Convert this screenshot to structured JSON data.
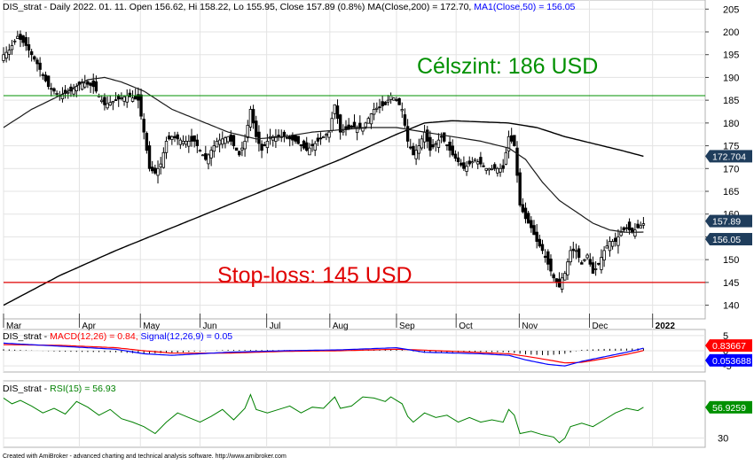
{
  "footer": "Created with AmiBroker - advanced charting and technical analysis software. http://www.amibroker.com",
  "colors": {
    "background": "#ffffff",
    "grid": "#e3e3e3",
    "candle": "#000000",
    "ma200": "#000000",
    "ma50": "#1a1a1a",
    "target_line": "#009000",
    "stop_line": "#e00000",
    "macd": "#0000ff",
    "signal": "#ff0000",
    "rsi": "#008000",
    "label_blue": "#0000ff",
    "label_red": "#ff0000",
    "tag_dark": "#1f3d5c",
    "tag_red": "#ff0000",
    "tag_blue": "#0000ff",
    "tag_green": "#009000"
  },
  "chart_data": [
    {
      "type": "candlestick",
      "panel": "price",
      "header": {
        "title": "DIS_strat - Daily 2022. 01. 11. Open 156.62, Hi 158.22, Lo 155.95, Close 157.89 (0.8%)",
        "ma200_label": "MA(Close,200) = 172.70",
        "ma50_label": "MA1(Close,50) = 156.05"
      },
      "ylim": [
        137,
        207
      ],
      "yticks": [
        140,
        145,
        150,
        155,
        160,
        165,
        170,
        175,
        180,
        185,
        190,
        195,
        200,
        205
      ],
      "months": [
        "Mar",
        "Apr",
        "May",
        "Jun",
        "Jul",
        "Aug",
        "Sep",
        "Oct",
        "Nov",
        "Dec",
        "2022"
      ],
      "close_path": [
        [
          0,
          195
        ],
        [
          2,
          196
        ],
        [
          5,
          199
        ],
        [
          8,
          197
        ],
        [
          12,
          193
        ],
        [
          16,
          188
        ],
        [
          20,
          186
        ],
        [
          24,
          187
        ],
        [
          28,
          189
        ],
        [
          32,
          188
        ],
        [
          36,
          184
        ],
        [
          40,
          185
        ],
        [
          44,
          186
        ],
        [
          48,
          185
        ],
        [
          50,
          178
        ],
        [
          52,
          170
        ],
        [
          54,
          169
        ],
        [
          56,
          171
        ],
        [
          58,
          176
        ],
        [
          60,
          177
        ],
        [
          64,
          176
        ],
        [
          68,
          176
        ],
        [
          72,
          172
        ],
        [
          76,
          176
        ],
        [
          80,
          177
        ],
        [
          84,
          173
        ],
        [
          86,
          176
        ],
        [
          88,
          183
        ],
        [
          90,
          177
        ],
        [
          92,
          174
        ],
        [
          95,
          177
        ],
        [
          100,
          177
        ],
        [
          104,
          176
        ],
        [
          108,
          174
        ],
        [
          112,
          176
        ],
        [
          116,
          178
        ],
        [
          118,
          184
        ],
        [
          120,
          178
        ],
        [
          124,
          179
        ],
        [
          128,
          179
        ],
        [
          132,
          183
        ],
        [
          136,
          184
        ],
        [
          138,
          186
        ],
        [
          140,
          185
        ],
        [
          142,
          183
        ],
        [
          144,
          176
        ],
        [
          146,
          173
        ],
        [
          148,
          175
        ],
        [
          150,
          178
        ],
        [
          152,
          174
        ],
        [
          156,
          177
        ],
        [
          160,
          173
        ],
        [
          164,
          170
        ],
        [
          168,
          172
        ],
        [
          172,
          170
        ],
        [
          176,
          170
        ],
        [
          178,
          170
        ],
        [
          180,
          177
        ],
        [
          182,
          175
        ],
        [
          184,
          162
        ],
        [
          186,
          159
        ],
        [
          188,
          157
        ],
        [
          190,
          154
        ],
        [
          192,
          152
        ],
        [
          194,
          149
        ],
        [
          196,
          146
        ],
        [
          198,
          144
        ],
        [
          199,
          146
        ],
        [
          200,
          147
        ],
        [
          202,
          152
        ],
        [
          204,
          152
        ],
        [
          206,
          149
        ],
        [
          208,
          151
        ],
        [
          210,
          147
        ],
        [
          212,
          149
        ],
        [
          214,
          152
        ],
        [
          216,
          154
        ],
        [
          218,
          154
        ],
        [
          220,
          156
        ],
        [
          222,
          157
        ],
        [
          224,
          156
        ],
        [
          226,
          157
        ],
        [
          228,
          157.89
        ]
      ],
      "last_close": 157.89,
      "ma200": {
        "name": "MA(Close,200)",
        "last": 172.7,
        "points": [
          [
            0,
            140
          ],
          [
            20,
            146.5
          ],
          [
            40,
            152
          ],
          [
            60,
            157
          ],
          [
            80,
            162
          ],
          [
            100,
            167
          ],
          [
            120,
            172
          ],
          [
            140,
            177.5
          ],
          [
            150,
            180
          ],
          [
            160,
            180.5
          ],
          [
            180,
            180
          ],
          [
            190,
            179
          ],
          [
            200,
            177
          ],
          [
            210,
            175.5
          ],
          [
            220,
            174
          ],
          [
            228,
            172.7
          ]
        ]
      },
      "ma50": {
        "name": "MA1(Close,50)",
        "last": 156.05,
        "points": [
          [
            0,
            179
          ],
          [
            10,
            183
          ],
          [
            20,
            186
          ],
          [
            30,
            189.5
          ],
          [
            36,
            190
          ],
          [
            42,
            189
          ],
          [
            50,
            187
          ],
          [
            60,
            183
          ],
          [
            70,
            180.5
          ],
          [
            80,
            178
          ],
          [
            90,
            176.5
          ],
          [
            100,
            177
          ],
          [
            110,
            178
          ],
          [
            120,
            178.5
          ],
          [
            130,
            179
          ],
          [
            140,
            179
          ],
          [
            150,
            178
          ],
          [
            160,
            177
          ],
          [
            170,
            176
          ],
          [
            180,
            174.5
          ],
          [
            186,
            172
          ],
          [
            192,
            167
          ],
          [
            198,
            163
          ],
          [
            204,
            160.5
          ],
          [
            210,
            158
          ],
          [
            216,
            156.5
          ],
          [
            222,
            156
          ],
          [
            228,
            156.05
          ]
        ]
      },
      "levels": [
        {
          "label": "Célszint: 186 USD",
          "value": 186
        },
        {
          "label": "Stop-loss: 145 USD",
          "value": 145
        }
      ],
      "price_tags": [
        "172.704",
        "157.89",
        "156.05"
      ]
    },
    {
      "type": "line",
      "panel": "macd",
      "header": {
        "title": "DIS_strat - ",
        "macd_label": "MACD(12,26) = 0.84,",
        "signal_label": "Signal(12,26,9) = 0.05"
      },
      "ylim": [
        -7,
        7
      ],
      "yticks": [
        5,
        0,
        -5
      ],
      "series": [
        {
          "name": "MACD(12,26)",
          "last": 0.84,
          "values": [
            [
              0,
              2.5
            ],
            [
              20,
              1.5
            ],
            [
              40,
              0.5
            ],
            [
              50,
              -1
            ],
            [
              60,
              -1.5
            ],
            [
              80,
              -0.5
            ],
            [
              100,
              0
            ],
            [
              120,
              0.3
            ],
            [
              140,
              1
            ],
            [
              150,
              -0.5
            ],
            [
              170,
              -1
            ],
            [
              180,
              -1.5
            ],
            [
              186,
              -3
            ],
            [
              194,
              -4.5
            ],
            [
              200,
              -5
            ],
            [
              206,
              -3.5
            ],
            [
              214,
              -2
            ],
            [
              222,
              -0.5
            ],
            [
              228,
              0.84
            ]
          ]
        },
        {
          "name": "Signal(12,26,9)",
          "last": 0.05,
          "values": [
            [
              0,
              2
            ],
            [
              20,
              1.8
            ],
            [
              40,
              1
            ],
            [
              50,
              0
            ],
            [
              60,
              -0.8
            ],
            [
              80,
              -0.8
            ],
            [
              100,
              -0.2
            ],
            [
              120,
              0
            ],
            [
              140,
              0.5
            ],
            [
              150,
              0.2
            ],
            [
              170,
              -0.6
            ],
            [
              180,
              -1
            ],
            [
              186,
              -1.8
            ],
            [
              194,
              -3
            ],
            [
              200,
              -4
            ],
            [
              206,
              -3.8
            ],
            [
              214,
              -2.6
            ],
            [
              222,
              -1.2
            ],
            [
              228,
              0.05
            ]
          ]
        }
      ],
      "value_tags": [
        "0.83667",
        "0.053688"
      ]
    },
    {
      "type": "line",
      "panel": "rsi",
      "header": {
        "title": "DIS_strat - ",
        "rsi_label": "RSI(15) = 56.93"
      },
      "ylim": [
        22,
        80
      ],
      "yticks": [
        30
      ],
      "series": [
        {
          "name": "RSI(15)",
          "last": 56.9259,
          "values": [
            [
              0,
              65
            ],
            [
              3,
              60
            ],
            [
              6,
              63
            ],
            [
              10,
              58
            ],
            [
              14,
              52
            ],
            [
              18,
              56
            ],
            [
              22,
              51
            ],
            [
              26,
              62
            ],
            [
              30,
              57
            ],
            [
              34,
              50
            ],
            [
              38,
              55
            ],
            [
              42,
              47
            ],
            [
              46,
              44
            ],
            [
              50,
              40
            ],
            [
              54,
              34
            ],
            [
              58,
              44
            ],
            [
              62,
              52
            ],
            [
              66,
              48
            ],
            [
              70,
              44
            ],
            [
              74,
              49
            ],
            [
              78,
              55
            ],
            [
              82,
              46
            ],
            [
              86,
              56
            ],
            [
              88,
              68
            ],
            [
              90,
              55
            ],
            [
              94,
              52
            ],
            [
              98,
              55
            ],
            [
              102,
              58
            ],
            [
              106,
              52
            ],
            [
              110,
              57
            ],
            [
              114,
              56
            ],
            [
              118,
              66
            ],
            [
              120,
              56
            ],
            [
              124,
              58
            ],
            [
              128,
              66
            ],
            [
              132,
              65
            ],
            [
              136,
              62
            ],
            [
              138,
              66
            ],
            [
              142,
              60
            ],
            [
              144,
              49
            ],
            [
              146,
              44
            ],
            [
              150,
              52
            ],
            [
              154,
              48
            ],
            [
              158,
              50
            ],
            [
              162,
              44
            ],
            [
              166,
              48
            ],
            [
              170,
              44
            ],
            [
              174,
              46
            ],
            [
              178,
              44
            ],
            [
              180,
              55
            ],
            [
              182,
              50
            ],
            [
              184,
              34
            ],
            [
              188,
              36
            ],
            [
              192,
              33
            ],
            [
              196,
              31
            ],
            [
              198,
              26
            ],
            [
              200,
              30
            ],
            [
              202,
              40
            ],
            [
              206,
              43
            ],
            [
              210,
              40
            ],
            [
              214,
              46
            ],
            [
              218,
              52
            ],
            [
              222,
              56
            ],
            [
              226,
              54
            ],
            [
              228,
              56.93
            ]
          ]
        }
      ],
      "value_tag": "56.9259"
    }
  ]
}
